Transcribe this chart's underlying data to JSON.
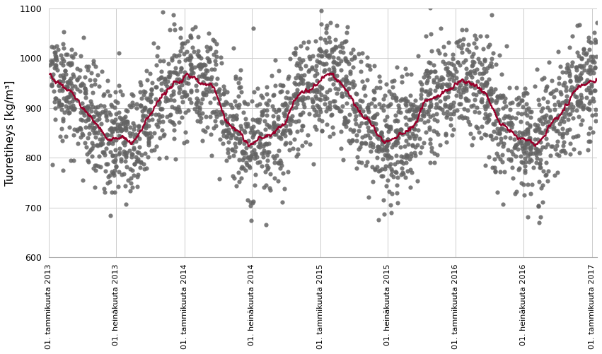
{
  "title": "",
  "ylabel": "Tuoretiheys [kg/m³]",
  "xlabel": "",
  "ylim": [
    600,
    1100
  ],
  "yticks": [
    600,
    700,
    800,
    900,
    1000,
    1100
  ],
  "background_color": "#ffffff",
  "scatter_color": "#646464",
  "line_color": "#99002b",
  "tick_dates": [
    "01. tammikuuta 2013",
    "01. heinäkuuta 2013",
    "01. tammikuuta 2014",
    "01. heinäkuuta 2014",
    "01. tammikuuta 2015",
    "01. heinäkuuta 2015",
    "01. tammikuuta 2016",
    "01. heinäkuuta 2016",
    "01. tammikuuta 2017"
  ],
  "seed": 42,
  "n_points": 2500,
  "scatter_size": 20,
  "scatter_alpha": 0.85,
  "line_width": 1.6,
  "smooth_window_days": 40,
  "grid_color": "#cccccc",
  "grid_linewidth": 0.7,
  "ylabel_fontsize": 11,
  "tick_fontsize": 8
}
